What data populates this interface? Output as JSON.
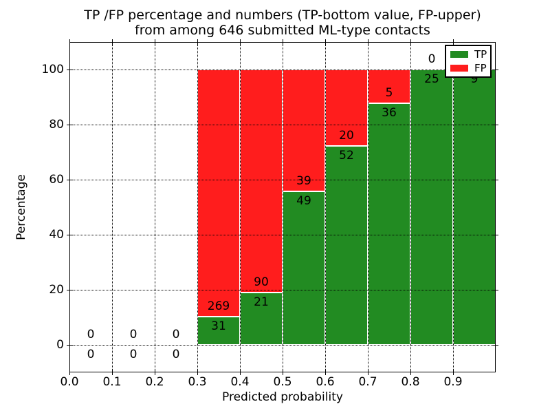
{
  "figure": {
    "background": "#ffffff"
  },
  "chart_data": {
    "type": "bar",
    "stacked": true,
    "normalized_to_percent": true,
    "title_line1": "TP /FP percentage and numbers (TP-bottom value, FP-upper)",
    "title_line2": "from among 646 submitted ML-type contacts",
    "xlabel": "Predicted probability",
    "ylabel": "Percentage",
    "xlim": [
      0.0,
      1.0
    ],
    "ylim": [
      -10,
      110
    ],
    "bin_left_edges": [
      0.0,
      0.1,
      0.2,
      0.3,
      0.4,
      0.5,
      0.6,
      0.7,
      0.8,
      0.9
    ],
    "bin_width": 0.1,
    "x_tick_labels": [
      "0.0",
      "0.1",
      "0.2",
      "0.3",
      "0.4",
      "0.5",
      "0.6",
      "0.7",
      "0.8",
      "0.9"
    ],
    "y_ticks": [
      0,
      20,
      40,
      60,
      80,
      100
    ],
    "y_tick_labels": [
      "0",
      "20",
      "40",
      "60",
      "80",
      "100"
    ],
    "grid": "dotted black, drawn above bars",
    "total_contacts": 646,
    "series": [
      {
        "name": "TP",
        "color": "#228b22",
        "values": [
          0,
          0,
          0,
          31,
          21,
          49,
          52,
          36,
          25,
          9
        ]
      },
      {
        "name": "FP",
        "color": "#ff1d1d",
        "values": [
          0,
          0,
          0,
          269,
          90,
          39,
          20,
          5,
          0,
          0
        ]
      }
    ],
    "legend": {
      "position": "upper right",
      "entries": [
        "TP",
        "FP"
      ]
    }
  }
}
